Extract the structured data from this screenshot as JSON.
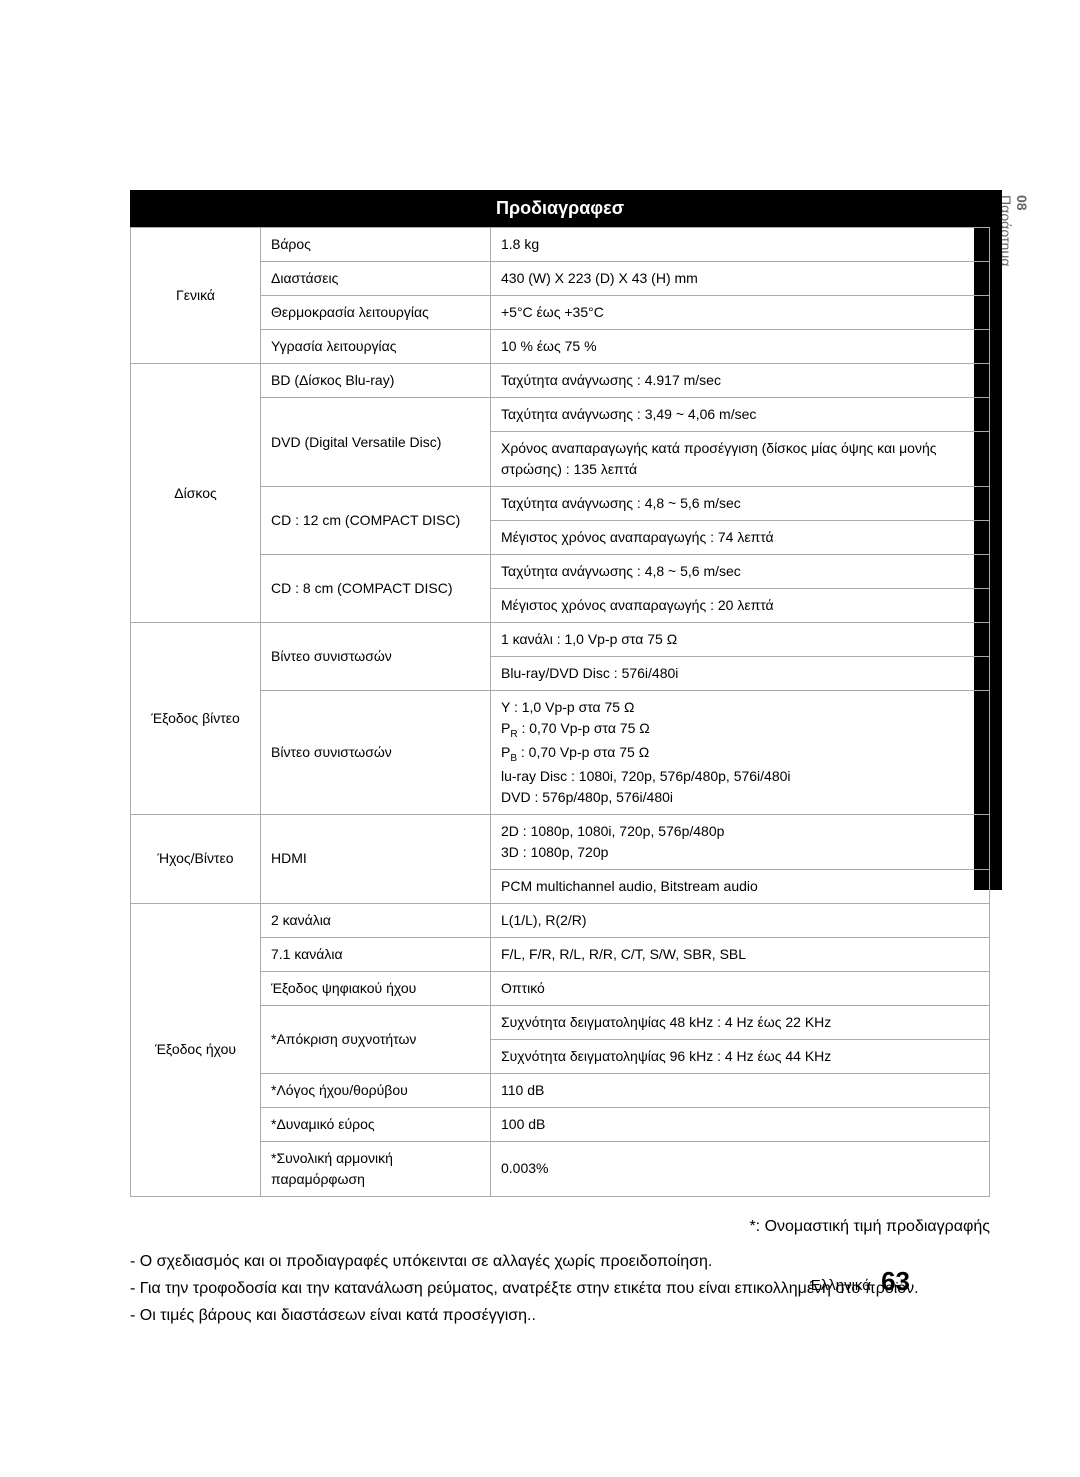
{
  "sidebar": {
    "num": "08",
    "label": "Παράρτημα"
  },
  "title": "Προδιαγραφεσ",
  "sections": {
    "general": {
      "category": "Γενικά",
      "rows": [
        {
          "label": "Βάρος",
          "value": "1.8 kg"
        },
        {
          "label": "Διαστάσεις",
          "value": "430 (W) Χ 223 (D) Χ 43 (H) mm"
        },
        {
          "label": "Θερμοκρασία λειτουργίας",
          "value": "+5°C έως +35°C"
        },
        {
          "label": "Υγρασία λειτουργίας",
          "value": "10 % έως 75 %"
        }
      ]
    },
    "disc": {
      "category": "Δίσκος",
      "items": {
        "bd": {
          "label": "BD (Δίσκος Blu-ray)",
          "value": "Ταχύτητα ανάγνωσης : 4.917 m/sec"
        },
        "dvd": {
          "label": "DVD (Digital Versatile Disc)",
          "v1": "Ταχύτητα ανάγνωσης : 3,49 ~ 4,06 m/sec",
          "v2": "Χρόνος αναπαραγωγής κατά προσέγγιση (δίσκος μίας όψης και μονής στρώσης) : 135 λεπτά"
        },
        "cd12": {
          "label": "CD : 12 cm (COMPACT DISC)",
          "v1": "Ταχύτητα ανάγνωσης : 4,8 ~ 5,6 m/sec",
          "v2": "Μέγιστος χρόνος αναπαραγωγής : 74 λεπτά"
        },
        "cd8": {
          "label": "CD : 8 cm (COMPACT DISC)",
          "v1": "Ταχύτητα ανάγνωσης : 4,8 ~ 5,6 m/sec",
          "v2": "Μέγιστος χρόνος αναπαραγωγής : 20 λεπτά"
        }
      }
    },
    "videoout": {
      "category": "Έξοδος βίντεο",
      "comp": {
        "label": "Βίντεο συνιστωσών",
        "v1": "1 κανάλι : 1,0 Vp-p στα 75 Ω",
        "v2": "Blu-ray/DVD Disc : 576i/480i"
      },
      "comp2": {
        "label": "Βίντεο συνιστωσών",
        "v_y_label": "Y : 1,0 Vp-p στα 75 Ω",
        "v_pr_pre": "P",
        "v_pr_sub": "R",
        "v_pr_post": " : 0,70 Vp-p στα 75 Ω",
        "v_pb_pre": "P",
        "v_pb_sub": "B",
        "v_pb_post": " : 0,70 Vp-p στα 75 Ω",
        "v_bluray": "lu-ray Disc : 1080i, 720p, 576p/480p, 576i/480i",
        "v_dvd": "DVD : 576p/480p, 576i/480i"
      }
    },
    "av": {
      "category": "Ήχος/Βίντεο",
      "hdmi": {
        "label": "HDMI",
        "v1": "2D : 1080p, 1080i, 720p, 576p/480p\n3D : 1080p, 720p",
        "v2": "PCM multichannel audio, Bitstream audio"
      }
    },
    "audioout": {
      "category": "Έξοδος ήχου",
      "ch2": {
        "label": "2 κανάλια",
        "value": "L(1/L), R(2/R)"
      },
      "ch71": {
        "label": "7.1 κανάλια",
        "value": "F/L, F/R, R/L, R/R, C/T, S/W, SBR, SBL"
      },
      "digital": {
        "label": "Έξοδος ψηφιακού ήχου",
        "value": "Οπτικό"
      },
      "freq": {
        "label": "*Απόκριση συχνοτήτων",
        "v1": "Συχνότητα δειγματοληψίας 48 kHz : 4 Hz έως 22 KHz",
        "v2": "Συχνότητα δειγματοληψίας 96 kHz : 4 Hz έως 44 KHz"
      },
      "snr": {
        "label": "*Λόγος ήχου/θορύβου",
        "value": "110 dB"
      },
      "dyn": {
        "label": "*Δυναμικό εύρος",
        "value": "100 dB"
      },
      "thd": {
        "label": "*Συνολική αρμονική παραμόρφωση",
        "value": "0.003%"
      }
    }
  },
  "notes": {
    "nominal": "*: Ονομαστική τιμή προδιαγραφής",
    "b1": "- Ο σχεδιασμός και οι προδιαγραφές υπόκεινται σε αλλαγές χωρίς προειδοποίηση.",
    "b2": "- Για την τροφοδοσία και την κατανάλωση ρεύματος, ανατρέξτε στην ετικέτα που είναι επικολλημένη στο προϊόν.",
    "b3": "- Οι τιμές βάρους και διαστάσεων είναι κατά προσέγγιση.."
  },
  "footer": {
    "lang": "Eλληνικά",
    "page": "63"
  }
}
